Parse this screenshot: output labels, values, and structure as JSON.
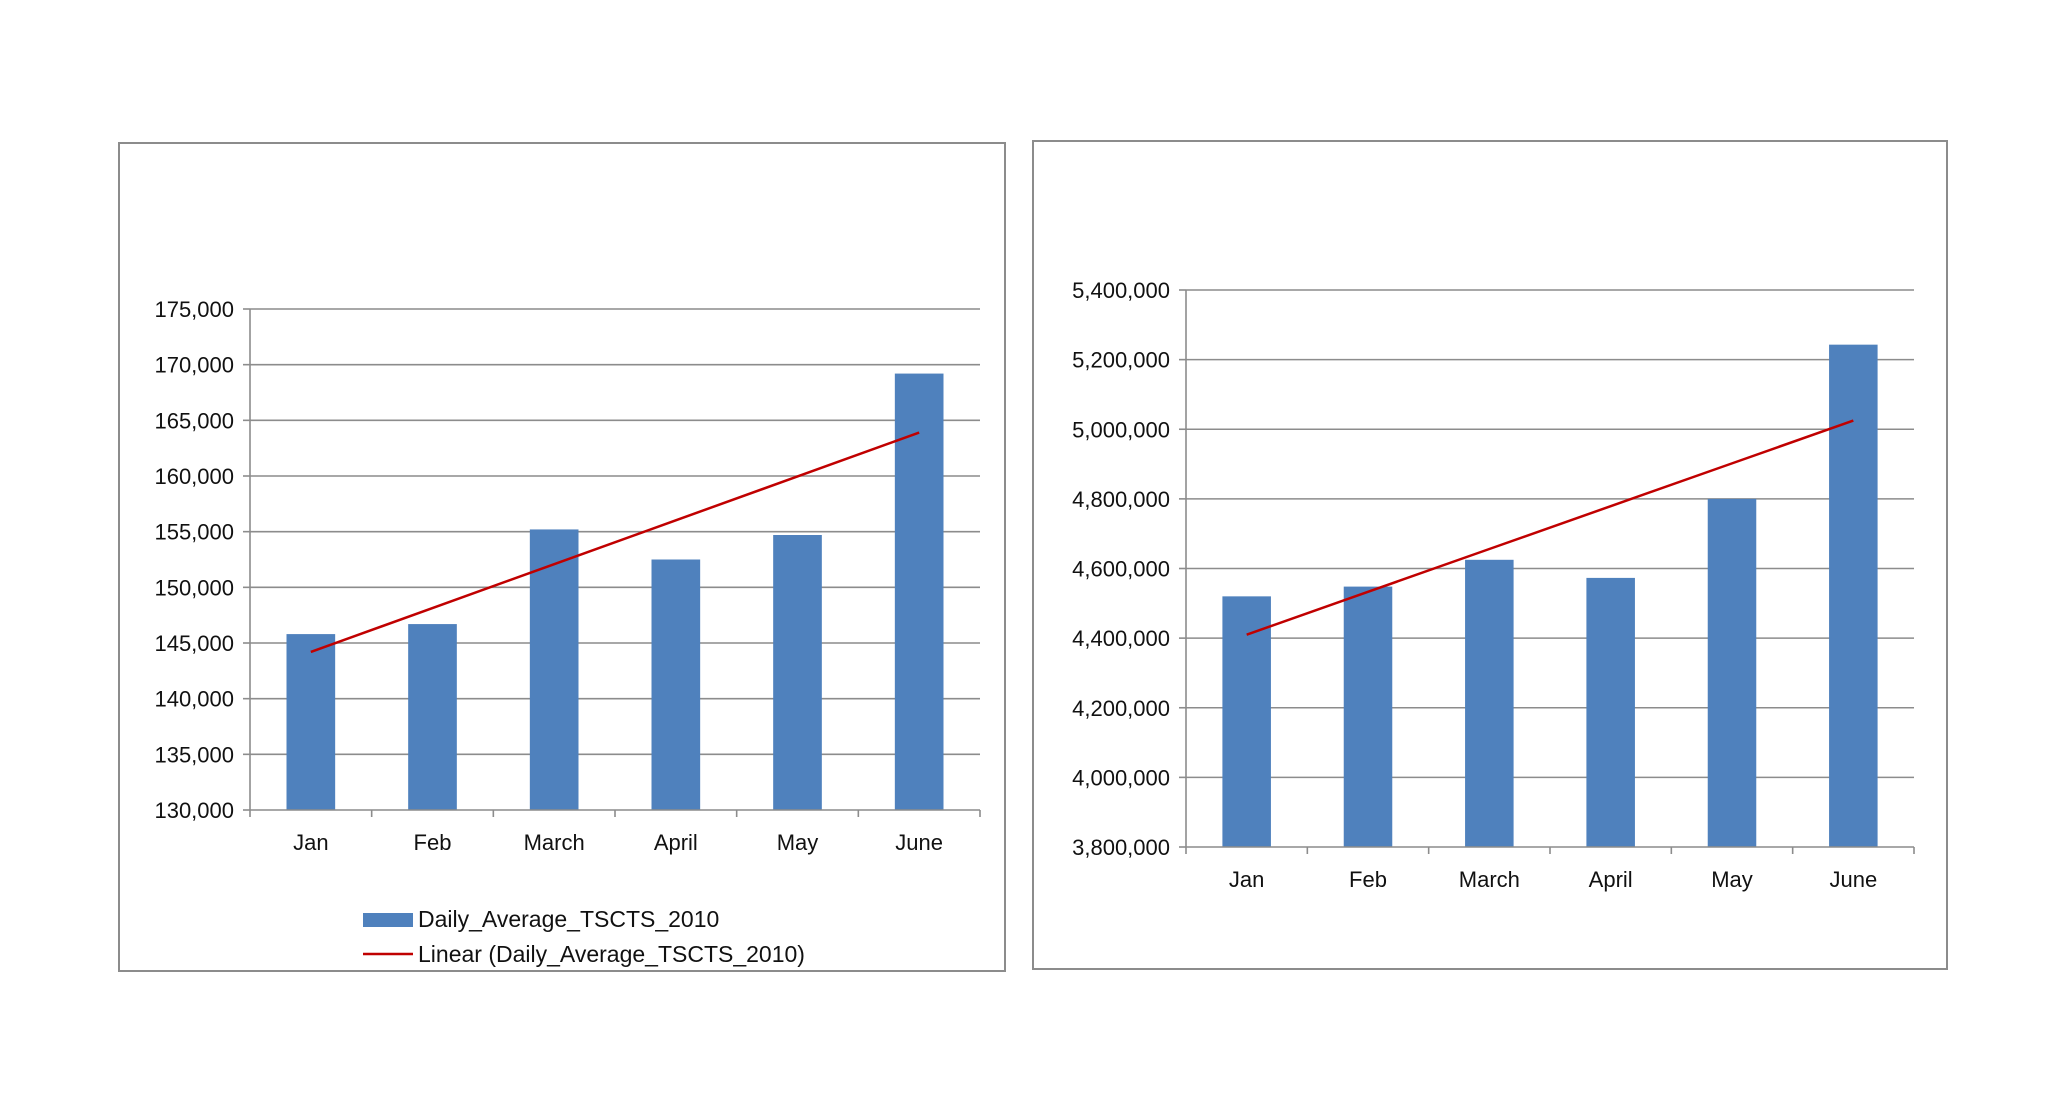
{
  "colors": {
    "bar": "#4f81bd",
    "trend": "#c00000",
    "grid": "#8c8c8c",
    "axis": "#8c8c8c",
    "panel_border": "#8c8c8c"
  },
  "chart_data": [
    {
      "type": "bar",
      "categories": [
        "Jan",
        "Feb",
        "March",
        "April",
        "May",
        "June"
      ],
      "series": [
        {
          "name": "Daily_Average_TSCTS_2010",
          "values": [
            145800,
            146700,
            155200,
            152500,
            154700,
            169200
          ]
        },
        {
          "name": "Linear (Daily_Average_TSCTS_2010)",
          "kind": "trendline",
          "values": [
            144200,
            148140,
            152080,
            156020,
            159960,
            163900
          ]
        }
      ],
      "yticks": [
        "130,000",
        "135,000",
        "140,000",
        "145,000",
        "150,000",
        "155,000",
        "160,000",
        "165,000",
        "170,000",
        "175,000"
      ],
      "ylim": [
        130000,
        175000
      ],
      "ystep": 5000,
      "grid": true,
      "legend": {
        "position": "bottom",
        "entries": [
          "Daily_Average_TSCTS_2010",
          "Linear (Daily_Average_TSCTS_2010)"
        ]
      }
    },
    {
      "type": "bar",
      "categories": [
        "Jan",
        "Feb",
        "March",
        "April",
        "May",
        "June"
      ],
      "series": [
        {
          "values": [
            4520000,
            4548000,
            4625000,
            4573000,
            4800000,
            5243000
          ]
        },
        {
          "kind": "trendline",
          "values": [
            4410000,
            4533000,
            4656000,
            4779000,
            4902000,
            5025000
          ]
        }
      ],
      "yticks": [
        "3,800,000",
        "4,000,000",
        "4,200,000",
        "4,400,000",
        "4,600,000",
        "4,800,000",
        "5,000,000",
        "5,200,000",
        "5,400,000"
      ],
      "ylim": [
        3800000,
        5400000
      ],
      "ystep": 200000,
      "grid": true,
      "legend": {
        "position": "none",
        "entries": []
      }
    }
  ]
}
